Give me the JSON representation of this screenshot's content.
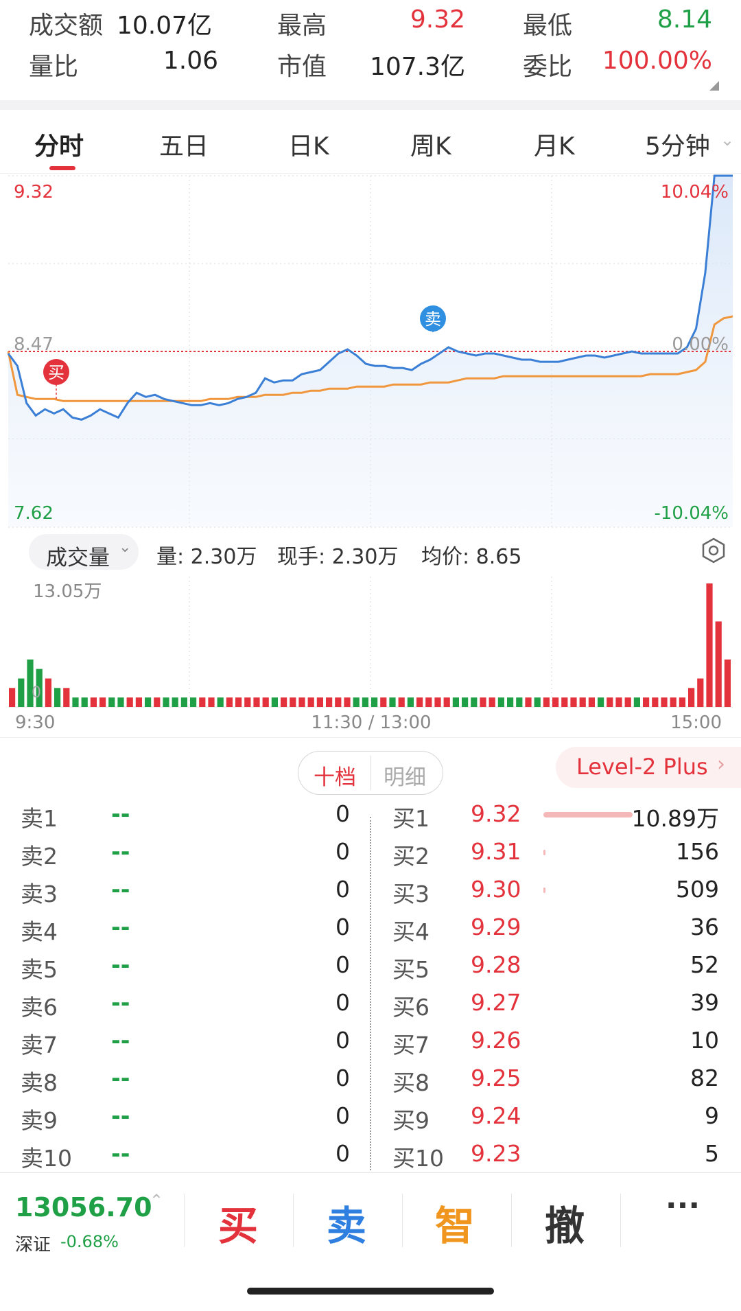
{
  "stats": {
    "turnover_label": "成交额",
    "turnover_value": "10.07亿",
    "high_label": "最高",
    "high_value": "9.32",
    "low_label": "最低",
    "low_value": "8.14",
    "volume_ratio_label": "量比",
    "volume_ratio_value": "1.06",
    "market_cap_label": "市值",
    "market_cap_value": "107.3亿",
    "order_ratio_label": "委比",
    "order_ratio_value": "100.00%"
  },
  "tabs": [
    {
      "label": "分时",
      "active": true
    },
    {
      "label": "五日",
      "active": false
    },
    {
      "label": "日K",
      "active": false
    },
    {
      "label": "周K",
      "active": false
    },
    {
      "label": "月K",
      "active": false
    },
    {
      "label": "5分钟",
      "active": false
    }
  ],
  "price_chart": {
    "y_top_label": "9.32",
    "y_mid_label": "8.47",
    "y_bottom_label": "7.62",
    "pct_top_label": "10.04%",
    "pct_mid_label": "0.00%",
    "pct_bottom_label": "-10.04%",
    "buy_marker": "买",
    "sell_marker": "卖",
    "colors": {
      "price": "#3a7fd5",
      "avg": "#f0963c",
      "up": "#e3323b",
      "down": "#1fa046"
    }
  },
  "chart_data": {
    "type": "line",
    "x_range": [
      "9:30",
      "15:00"
    ],
    "ylim": [
      7.62,
      9.32
    ],
    "reference_price": 8.47,
    "series": [
      {
        "values": [
          8.46,
          8.4,
          8.22,
          8.16,
          8.19,
          8.17,
          8.19,
          8.15,
          8.14,
          8.16,
          8.19,
          8.17,
          8.15,
          8.22,
          8.27,
          8.25,
          8.26,
          8.24,
          8.23,
          8.22,
          8.21,
          8.21,
          8.22,
          8.21,
          8.22,
          8.24,
          8.25,
          8.27,
          8.34,
          8.32,
          8.33,
          8.33,
          8.36,
          8.37,
          8.38,
          8.42,
          8.46,
          8.48,
          8.45,
          8.41,
          8.4,
          8.4,
          8.39,
          8.39,
          8.38,
          8.41,
          8.43,
          8.46,
          8.49,
          8.47,
          8.46,
          8.45,
          8.46,
          8.46,
          8.45,
          8.44,
          8.43,
          8.43,
          8.42,
          8.42,
          8.42,
          8.43,
          8.44,
          8.45,
          8.45,
          8.44,
          8.45,
          8.46,
          8.47,
          8.46,
          8.46,
          8.46,
          8.46,
          8.46,
          8.49,
          8.58,
          8.85,
          9.32,
          9.32,
          9.32
        ]
      },
      {
        "values": [
          8.47,
          8.26,
          8.25,
          8.24,
          8.24,
          8.24,
          8.23,
          8.23,
          8.23,
          8.23,
          8.23,
          8.23,
          8.23,
          8.23,
          8.23,
          8.23,
          8.23,
          8.23,
          8.23,
          8.23,
          8.23,
          8.23,
          8.24,
          8.24,
          8.24,
          8.25,
          8.25,
          8.25,
          8.26,
          8.26,
          8.26,
          8.27,
          8.27,
          8.28,
          8.28,
          8.29,
          8.29,
          8.29,
          8.3,
          8.3,
          8.3,
          8.3,
          8.31,
          8.31,
          8.31,
          8.31,
          8.32,
          8.32,
          8.32,
          8.33,
          8.34,
          8.34,
          8.34,
          8.34,
          8.35,
          8.35,
          8.35,
          8.35,
          8.35,
          8.35,
          8.35,
          8.35,
          8.35,
          8.35,
          8.35,
          8.35,
          8.35,
          8.35,
          8.35,
          8.35,
          8.36,
          8.36,
          8.36,
          8.36,
          8.37,
          8.38,
          8.42,
          8.6,
          8.63,
          8.64
        ]
      }
    ]
  },
  "volume_header": {
    "selector_label": "成交量",
    "volume_text": "量: 2.30万",
    "current_hand_text": "现手: 2.30万",
    "avg_price_text": "均价: 8.65"
  },
  "volume_chart": {
    "max_label": "13.05万",
    "zero_label": "0",
    "x_start": "9:30",
    "x_mid": "11:30 / 13:00",
    "x_end": "15:00",
    "bars": [
      2,
      3,
      5,
      4,
      3,
      2,
      2,
      1,
      1,
      1,
      1,
      1,
      1,
      1,
      1,
      1,
      1,
      1,
      1,
      1,
      1,
      1,
      1,
      1,
      1,
      1,
      1,
      1,
      1,
      1,
      1,
      1,
      1,
      1,
      1,
      1,
      1,
      1,
      1,
      1,
      1,
      1,
      1,
      1,
      1,
      1,
      1,
      1,
      1,
      1,
      1,
      1,
      1,
      1,
      1,
      1,
      1,
      1,
      1,
      1,
      1,
      1,
      1,
      1,
      1,
      1,
      1,
      1,
      1,
      1,
      1,
      1,
      1,
      1,
      1,
      2,
      3,
      13,
      9,
      5
    ]
  },
  "orderbook": {
    "tab_ten": "十档",
    "tab_detail": "明细",
    "level2_label": "Level-2 Plus",
    "sell": [
      {
        "label": "卖1",
        "price": "--",
        "qty": "0"
      },
      {
        "label": "卖2",
        "price": "--",
        "qty": "0"
      },
      {
        "label": "卖3",
        "price": "--",
        "qty": "0"
      },
      {
        "label": "卖4",
        "price": "--",
        "qty": "0"
      },
      {
        "label": "卖5",
        "price": "--",
        "qty": "0"
      },
      {
        "label": "卖6",
        "price": "--",
        "qty": "0"
      },
      {
        "label": "卖7",
        "price": "--",
        "qty": "0"
      },
      {
        "label": "卖8",
        "price": "--",
        "qty": "0"
      },
      {
        "label": "卖9",
        "price": "--",
        "qty": "0"
      },
      {
        "label": "卖10",
        "price": "--",
        "qty": "0"
      }
    ],
    "buy": [
      {
        "label": "买1",
        "price": "9.32",
        "qty": "10.89万"
      },
      {
        "label": "买2",
        "price": "9.31",
        "qty": "156"
      },
      {
        "label": "买3",
        "price": "9.30",
        "qty": "509"
      },
      {
        "label": "买4",
        "price": "9.29",
        "qty": "36"
      },
      {
        "label": "买5",
        "price": "9.28",
        "qty": "52"
      },
      {
        "label": "买6",
        "price": "9.27",
        "qty": "39"
      },
      {
        "label": "买7",
        "price": "9.26",
        "qty": "10"
      },
      {
        "label": "买8",
        "price": "9.25",
        "qty": "82"
      },
      {
        "label": "买9",
        "price": "9.24",
        "qty": "9"
      },
      {
        "label": "买10",
        "price": "9.23",
        "qty": "5"
      }
    ]
  },
  "bottom_bar": {
    "index_value": "13056.70",
    "index_name": "深证",
    "index_change": "-0.68%",
    "buy_label": "买",
    "sell_label": "卖",
    "smart_label": "智",
    "cancel_label": "撤",
    "more_label": "···"
  }
}
